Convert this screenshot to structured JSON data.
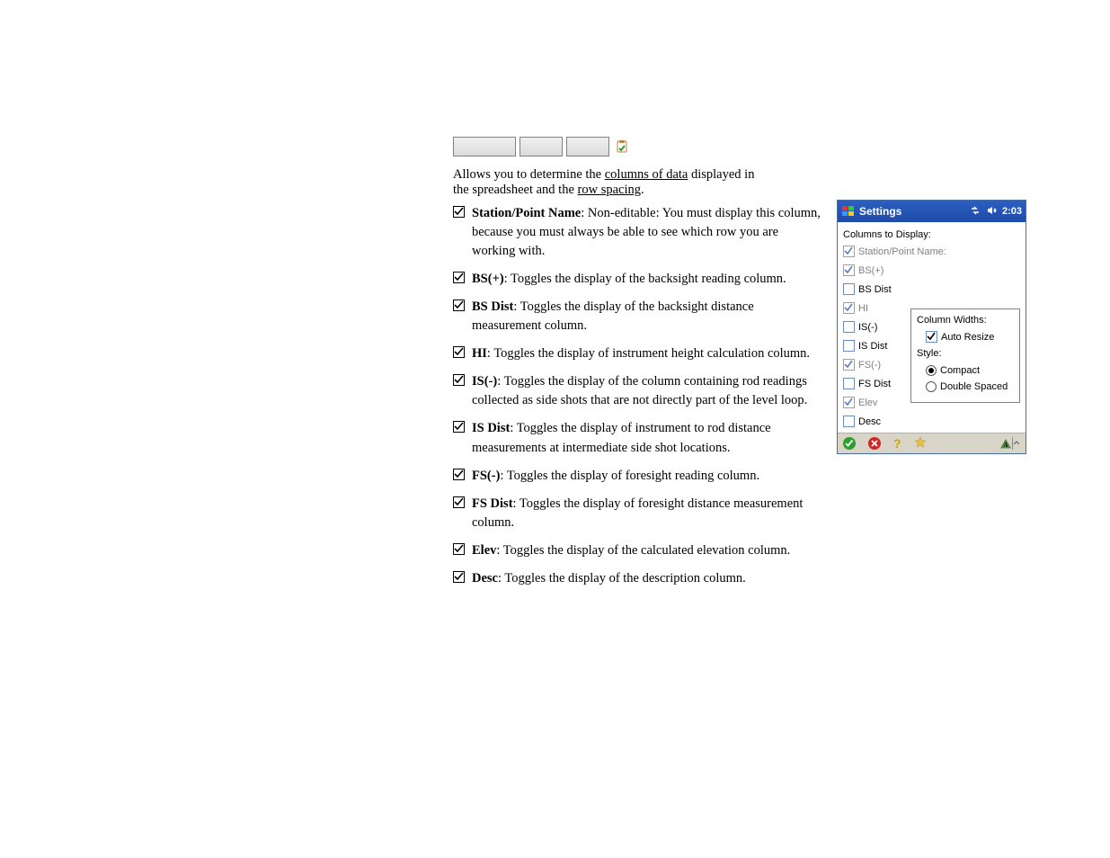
{
  "buttons": {
    "b1": "",
    "b2": "",
    "b3": ""
  },
  "intro_line1_pre": "Allows you to determine the ",
  "intro_line1_u": "columns of data",
  "intro_line1_post": " displayed in",
  "intro_line2_pre": "the spreadsheet and the ",
  "intro_line2_u": "row spacing",
  "intro_line2_post": ".",
  "items": [
    {
      "lead": "Station/Point Name",
      "rest": ": Non-editable: You must display this column, because you must always be able to see which row you are working with."
    },
    {
      "lead": "BS(+)",
      "rest": ": Toggles the display of the backsight reading column."
    },
    {
      "lead": "BS Dist",
      "rest": ": Toggles the display of the backsight distance measurement column."
    },
    {
      "lead": "HI",
      "rest": ": Toggles the display of instrument height calculation column."
    },
    {
      "lead": "IS(-)",
      "rest": ": Toggles the display of the column containing rod readings collected as side shots that are not directly part of the level loop."
    },
    {
      "lead": "IS Dist",
      "rest": ": Toggles the display of instrument to rod distance measurements at intermediate side shot locations."
    },
    {
      "lead": "FS(-)",
      "rest": ": Toggles the display of foresight reading column."
    },
    {
      "lead": "FS Dist",
      "rest": ": Toggles the display of foresight distance measurement column."
    },
    {
      "lead": "Elev",
      "rest": ": Toggles the display of the calculated elevation column."
    },
    {
      "lead": "Desc",
      "rest": ": Toggles the display of the description column."
    }
  ],
  "pda": {
    "title": "Settings",
    "time": "2:03",
    "heading": "Columns to Display:",
    "checks": [
      {
        "label": "Station/Point Name:",
        "checked": true,
        "disabled": true
      },
      {
        "label": "BS(+)",
        "checked": true,
        "disabled": true
      },
      {
        "label": "BS Dist",
        "checked": false,
        "disabled": false
      },
      {
        "label": "HI",
        "checked": true,
        "disabled": true
      },
      {
        "label": "IS(-)",
        "checked": false,
        "disabled": false
      },
      {
        "label": "IS Dist",
        "checked": false,
        "disabled": false
      },
      {
        "label": "FS(-)",
        "checked": true,
        "disabled": true
      },
      {
        "label": "FS Dist",
        "checked": false,
        "disabled": false
      },
      {
        "label": "Elev",
        "checked": true,
        "disabled": true
      },
      {
        "label": "Desc",
        "checked": false,
        "disabled": false
      }
    ],
    "frame": {
      "widths_header": "Column Widths:",
      "auto_resize": "Auto Resize",
      "auto_resize_checked": true,
      "style_header": "Style:",
      "compact": "Compact",
      "double": "Double Spaced",
      "selected": "compact"
    },
    "colors": {
      "titlebar_top": "#2b5fc1",
      "titlebar_bottom": "#1f4aa8",
      "bottom_bar": "#d8d4c8",
      "green": "#2e9e2e",
      "red": "#d02828",
      "q": "#d4a300",
      "star": "#e6c040",
      "checkbox_border": "#6b8bc1",
      "disabled_text": "#808080"
    }
  }
}
